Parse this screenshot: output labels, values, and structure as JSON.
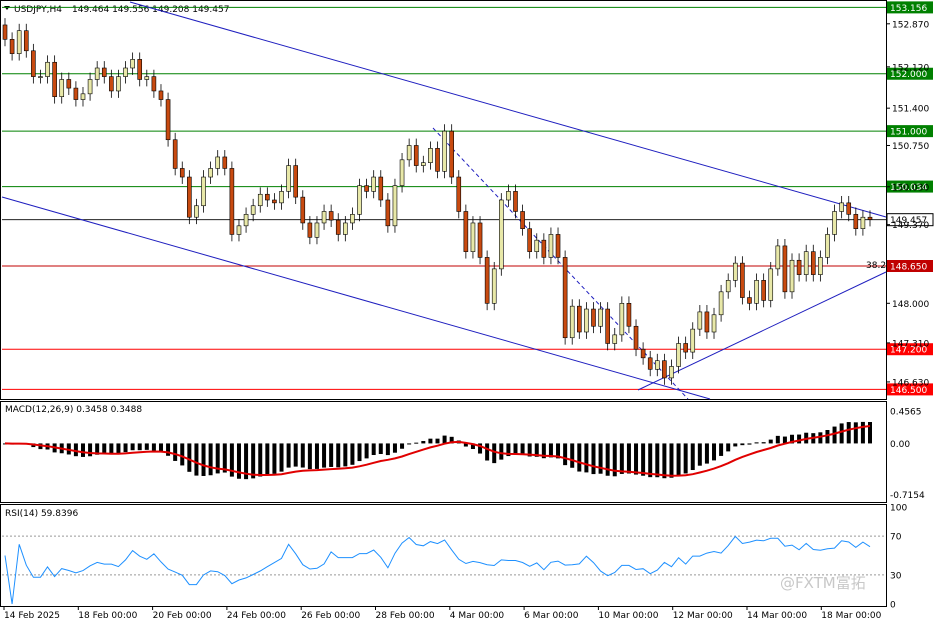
{
  "header": {
    "title": "USDJPY,H4",
    "ohlc": "149.464 149.556 149.208 149.457"
  },
  "watermark": "@FXTM富拓",
  "chart_data": {
    "type": "candlestick",
    "symbol": "USDJPY",
    "timeframe": "H4",
    "price_axis_ticks": [
      "152.870",
      "152.120",
      "151.400",
      "150.750",
      "150.030",
      "149.370",
      "148.000",
      "147.310",
      "146.630"
    ],
    "current_price": "149.457",
    "ylim": [
      146.35,
      153.25
    ],
    "levels": [
      {
        "value": 153.156,
        "label": "153.156",
        "color": "#008000"
      },
      {
        "value": 152.0,
        "label": "152.000",
        "color": "#008000"
      },
      {
        "value": 151.0,
        "label": "151.000",
        "color": "#008000"
      },
      {
        "value": 150.034,
        "label": "150.034",
        "color": "#008000"
      },
      {
        "value": 148.65,
        "label": "148.650",
        "color": "#c00000"
      },
      {
        "value": 147.2,
        "label": "147.200",
        "color": "#ff0000"
      },
      {
        "value": 146.5,
        "label": "146.500",
        "color": "#ff0000"
      }
    ],
    "fib_label": "38.2",
    "x_labels": [
      "14 Feb 2025",
      "18 Feb 00:00",
      "20 Feb 00:00",
      "24 Feb 00:00",
      "26 Feb 00:00",
      "28 Feb 00:00",
      "4 Mar 00:00",
      "6 Mar 00:00",
      "10 Mar 00:00",
      "12 Mar 00:00",
      "14 Mar 00:00",
      "18 Mar 00:00"
    ],
    "candles": [
      [
        152.85,
        152.6
      ],
      [
        152.6,
        152.35
      ],
      [
        152.35,
        152.75
      ],
      [
        152.75,
        152.4
      ],
      [
        152.4,
        151.95
      ],
      [
        151.95,
        151.95
      ],
      [
        151.95,
        152.2
      ],
      [
        152.2,
        151.6
      ],
      [
        151.6,
        151.9
      ],
      [
        151.9,
        151.75
      ],
      [
        151.75,
        151.55
      ],
      [
        151.55,
        151.65
      ],
      [
        151.65,
        151.9
      ],
      [
        151.9,
        152.1
      ],
      [
        152.1,
        151.95
      ],
      [
        151.95,
        151.7
      ],
      [
        151.7,
        151.95
      ],
      [
        151.95,
        152.1
      ],
      [
        152.1,
        152.25
      ],
      [
        152.25,
        151.9
      ],
      [
        151.9,
        151.95
      ],
      [
        151.95,
        151.7
      ],
      [
        151.7,
        151.55
      ],
      [
        151.55,
        150.85
      ],
      [
        150.85,
        150.35
      ],
      [
        150.35,
        150.2
      ],
      [
        150.2,
        149.5
      ],
      [
        149.5,
        149.7
      ],
      [
        149.7,
        150.2
      ],
      [
        150.2,
        150.35
      ],
      [
        150.35,
        150.55
      ],
      [
        150.55,
        150.35
      ],
      [
        150.35,
        149.2
      ],
      [
        149.2,
        149.35
      ],
      [
        149.35,
        149.55
      ],
      [
        149.55,
        149.7
      ],
      [
        149.7,
        149.9
      ],
      [
        149.9,
        149.8
      ],
      [
        149.8,
        149.75
      ],
      [
        149.75,
        149.95
      ],
      [
        149.95,
        150.4
      ],
      [
        150.4,
        149.85
      ],
      [
        149.85,
        149.4
      ],
      [
        149.4,
        149.15
      ],
      [
        149.15,
        149.4
      ],
      [
        149.4,
        149.6
      ],
      [
        149.6,
        149.45
      ],
      [
        149.45,
        149.2
      ],
      [
        149.2,
        149.4
      ],
      [
        149.4,
        149.55
      ],
      [
        149.55,
        150.05
      ],
      [
        150.05,
        149.95
      ],
      [
        149.95,
        150.2
      ],
      [
        150.2,
        149.8
      ],
      [
        149.8,
        149.35
      ],
      [
        149.35,
        150.05
      ],
      [
        150.05,
        150.5
      ],
      [
        150.5,
        150.75
      ],
      [
        150.75,
        150.4
      ],
      [
        150.4,
        150.45
      ],
      [
        150.45,
        150.7
      ],
      [
        150.7,
        150.3
      ],
      [
        150.3,
        151.0
      ],
      [
        151.0,
        150.2
      ],
      [
        150.2,
        149.6
      ],
      [
        149.6,
        148.9
      ],
      [
        148.9,
        149.4
      ],
      [
        149.4,
        148.8
      ],
      [
        148.8,
        148.0
      ],
      [
        148.0,
        148.6
      ],
      [
        148.6,
        149.8
      ],
      [
        149.8,
        149.95
      ],
      [
        149.95,
        149.6
      ],
      [
        149.6,
        149.3
      ],
      [
        149.3,
        148.9
      ],
      [
        148.9,
        149.1
      ],
      [
        149.1,
        148.8
      ],
      [
        148.8,
        149.2
      ],
      [
        149.2,
        148.8
      ],
      [
        148.8,
        147.4
      ],
      [
        147.4,
        147.95
      ],
      [
        147.95,
        147.5
      ],
      [
        147.5,
        147.9
      ],
      [
        147.9,
        147.6
      ],
      [
        147.6,
        147.9
      ],
      [
        147.9,
        147.3
      ],
      [
        147.3,
        147.45
      ],
      [
        147.45,
        148.0
      ],
      [
        148.0,
        147.6
      ],
      [
        147.6,
        147.2
      ],
      [
        147.2,
        147.05
      ],
      [
        147.05,
        146.85
      ],
      [
        146.85,
        147.0
      ],
      [
        147.0,
        146.7
      ],
      [
        146.7,
        146.9
      ],
      [
        146.9,
        147.3
      ],
      [
        147.3,
        147.15
      ],
      [
        147.15,
        147.55
      ],
      [
        147.55,
        147.85
      ],
      [
        147.85,
        147.5
      ],
      [
        147.5,
        147.8
      ],
      [
        147.8,
        148.2
      ],
      [
        148.2,
        148.4
      ],
      [
        148.4,
        148.7
      ],
      [
        148.7,
        148.1
      ],
      [
        148.1,
        148.0
      ],
      [
        148.0,
        148.4
      ],
      [
        148.4,
        148.05
      ],
      [
        148.05,
        148.6
      ],
      [
        148.6,
        149.0
      ],
      [
        149.0,
        148.2
      ],
      [
        148.2,
        148.75
      ],
      [
        148.75,
        148.5
      ],
      [
        148.5,
        148.9
      ],
      [
        148.9,
        148.5
      ],
      [
        148.5,
        148.8
      ],
      [
        148.8,
        149.2
      ],
      [
        149.2,
        149.6
      ],
      [
        149.6,
        149.75
      ],
      [
        149.75,
        149.55
      ],
      [
        149.55,
        149.3
      ],
      [
        149.3,
        149.5
      ],
      [
        149.5,
        149.46
      ]
    ],
    "macd": {
      "label": "MACD(12,26,9) 0.3458 0.3488",
      "ticks": [
        "0.4565",
        "0.00",
        "-0.7154"
      ],
      "ylim": [
        -0.82,
        0.58
      ]
    },
    "rsi": {
      "label": "RSI(14) 59.8396",
      "ticks": [
        "100",
        "70",
        "30",
        "0"
      ],
      "ylim": [
        0,
        100
      ]
    }
  }
}
